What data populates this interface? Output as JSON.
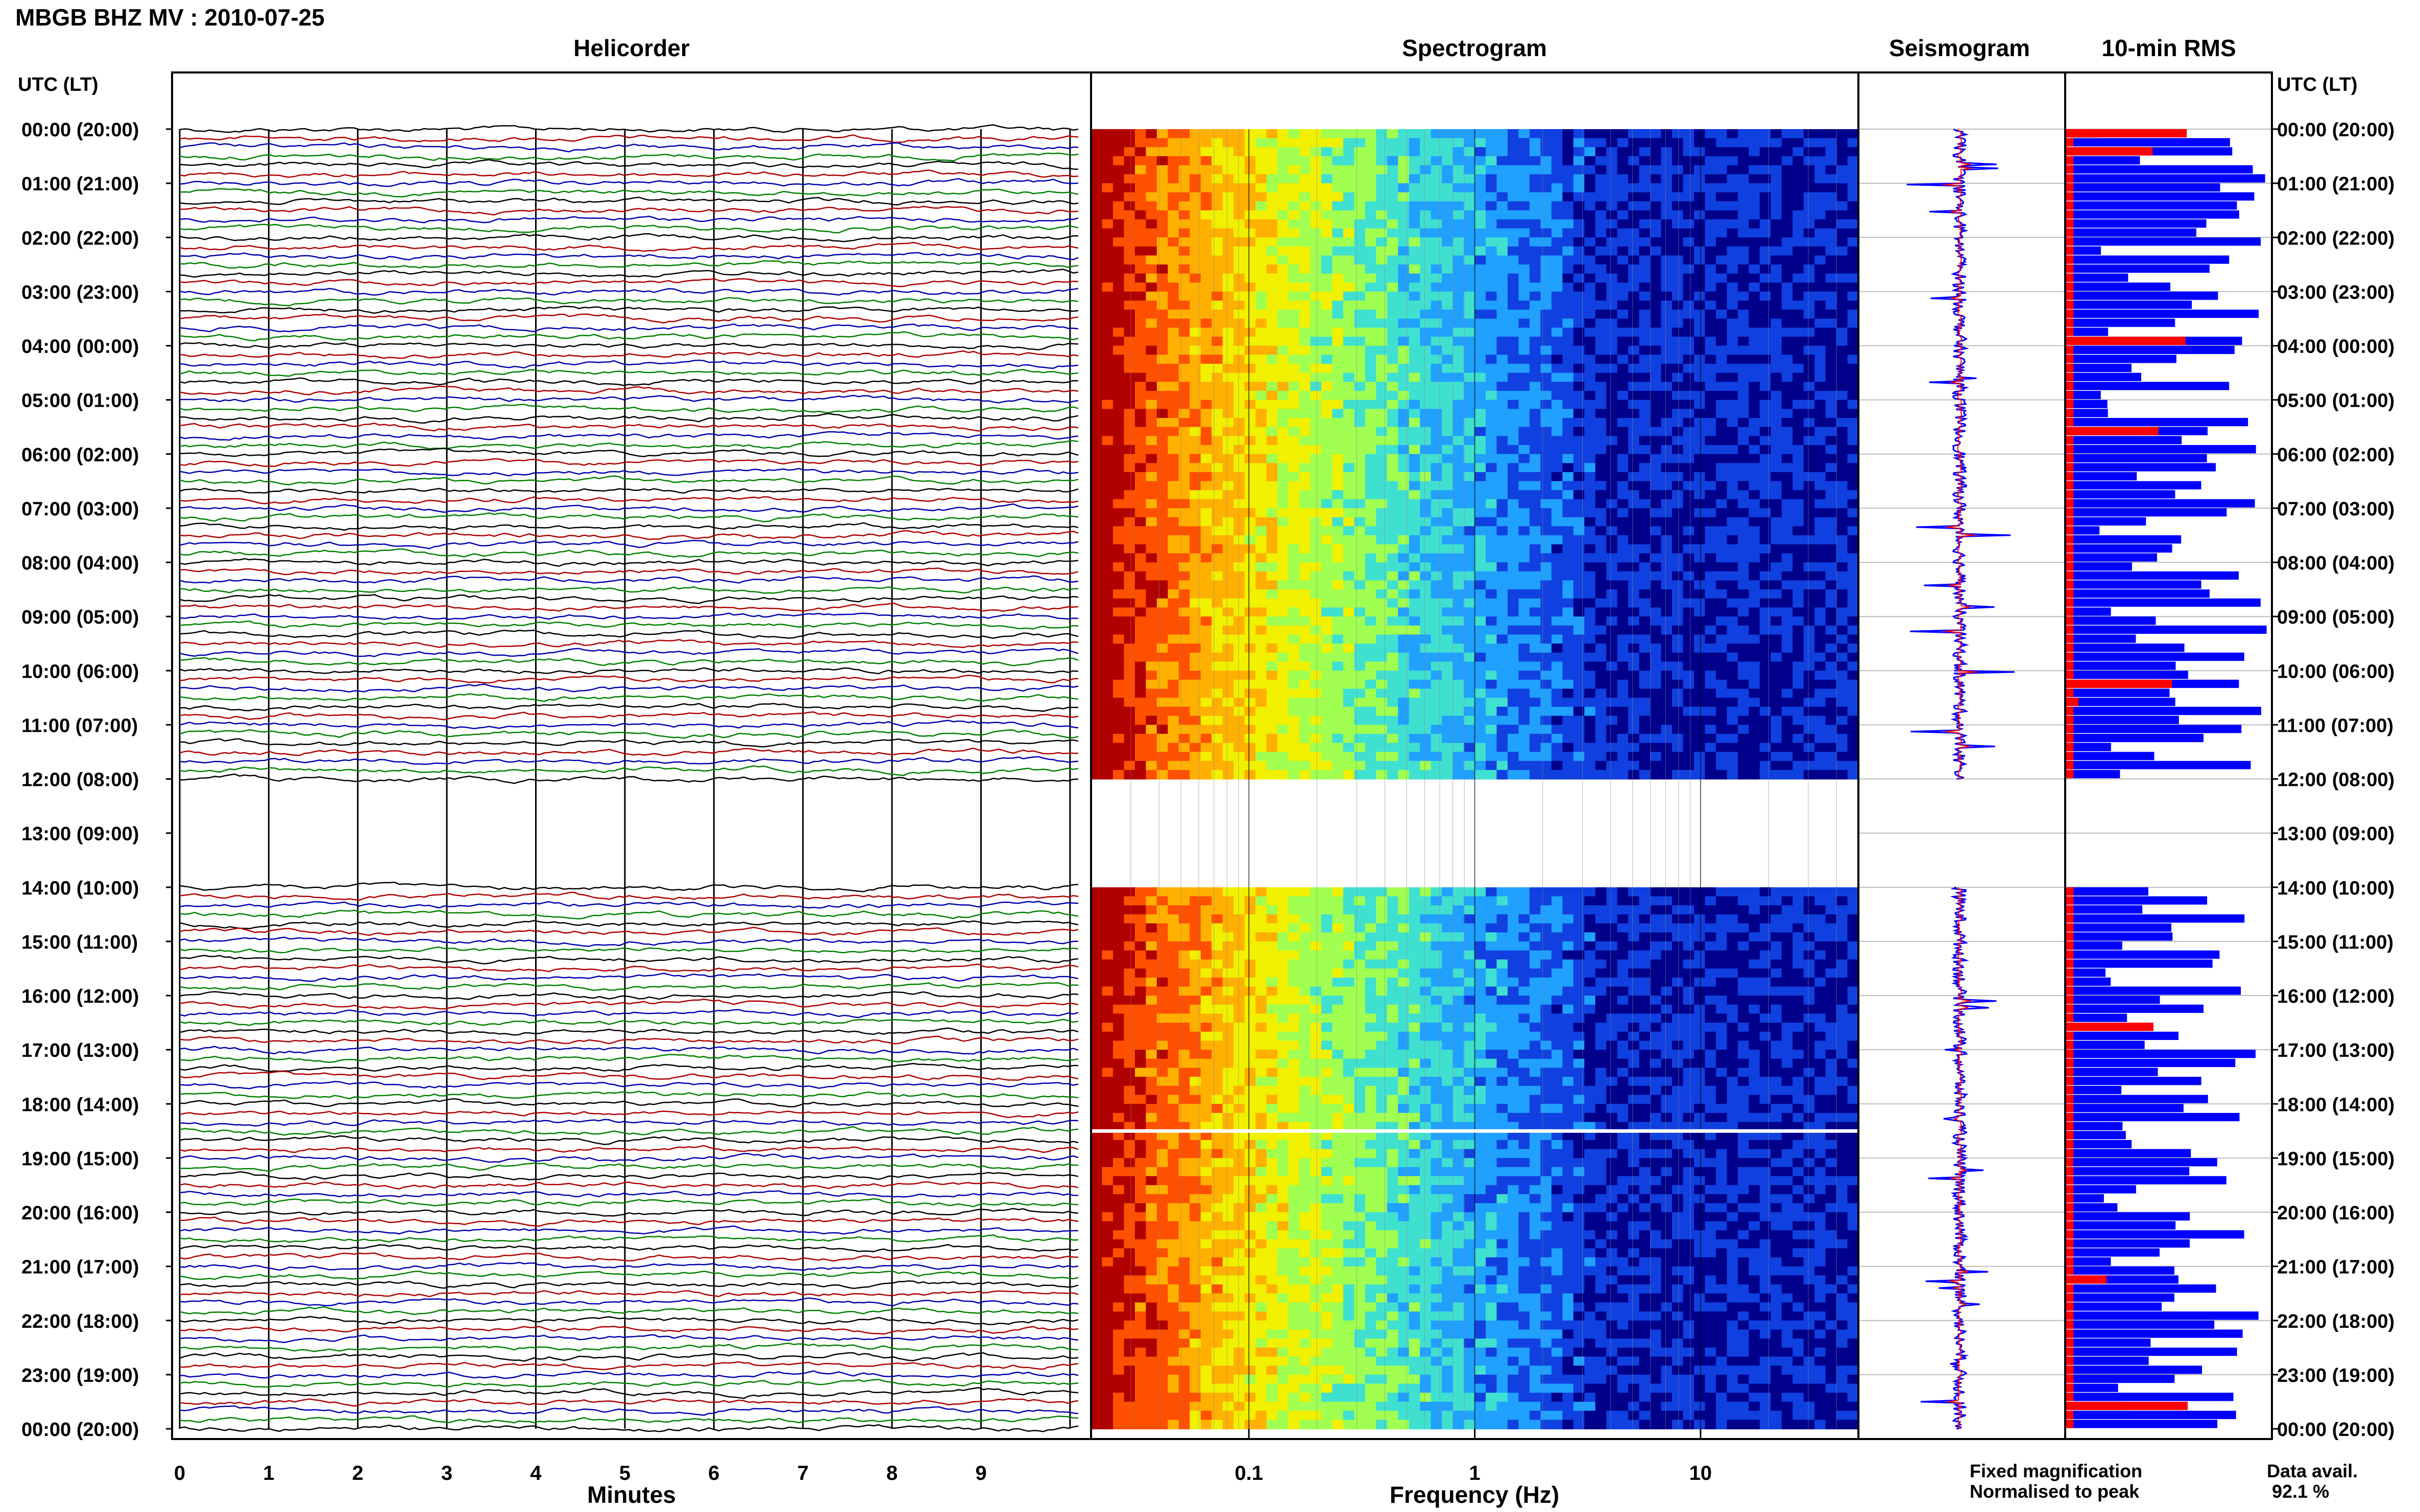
{
  "chart_data": {
    "type": "heatmap",
    "title": "MBGB BHZ MV : 2010-07-25",
    "row_axis_label": "UTC (LT)",
    "row_labels": [
      "00:00 (20:00)",
      "01:00 (21:00)",
      "02:00 (22:00)",
      "03:00 (23:00)",
      "04:00 (00:00)",
      "05:00 (01:00)",
      "06:00 (02:00)",
      "07:00 (03:00)",
      "08:00 (04:00)",
      "09:00 (05:00)",
      "10:00 (06:00)",
      "11:00 (07:00)",
      "12:00 (08:00)",
      "13:00 (09:00)",
      "14:00 (10:00)",
      "15:00 (11:00)",
      "16:00 (12:00)",
      "17:00 (13:00)",
      "18:00 (14:00)",
      "19:00 (15:00)",
      "20:00 (16:00)",
      "21:00 (17:00)",
      "22:00 (18:00)",
      "23:00 (19:00)",
      "00:00 (20:00)"
    ],
    "data_gap_hours": [
      12,
      14
    ],
    "panels": {
      "helicorder": {
        "title": "Helicorder",
        "xlabel": "Minutes",
        "xticks": [
          "0",
          "1",
          "2",
          "3",
          "4",
          "5",
          "6",
          "7",
          "8",
          "9"
        ],
        "xlim": [
          0,
          10
        ],
        "trace_colors": [
          "#000000",
          "#b00000",
          "#0000b0",
          "#008000"
        ]
      },
      "spectrogram": {
        "title": "Spectrogram",
        "xlabel": "Frequency (Hz)",
        "xscale": "log",
        "xlim": [
          0.02,
          50
        ],
        "xticks": [
          "0.1",
          "1",
          "10"
        ],
        "colormap": [
          "#b00000",
          "#ff5000",
          "#ffb000",
          "#f0f000",
          "#a0ff50",
          "#40e0d0",
          "#20a0ff",
          "#1040e0",
          "#00008b"
        ]
      },
      "seismogram": {
        "title": "Seismogram",
        "legend": [
          {
            "label": "Fixed magnification",
            "color": "#0000ff"
          },
          {
            "label": "Normalised to peak",
            "color": "#ff0000"
          }
        ]
      },
      "rms": {
        "title": "10-min RMS",
        "bar_color_fixed": "#0000ff",
        "bar_color_normalised": "#ff0000"
      }
    },
    "data_availability": {
      "label": "Data avail.",
      "value": "92.1 %"
    }
  }
}
